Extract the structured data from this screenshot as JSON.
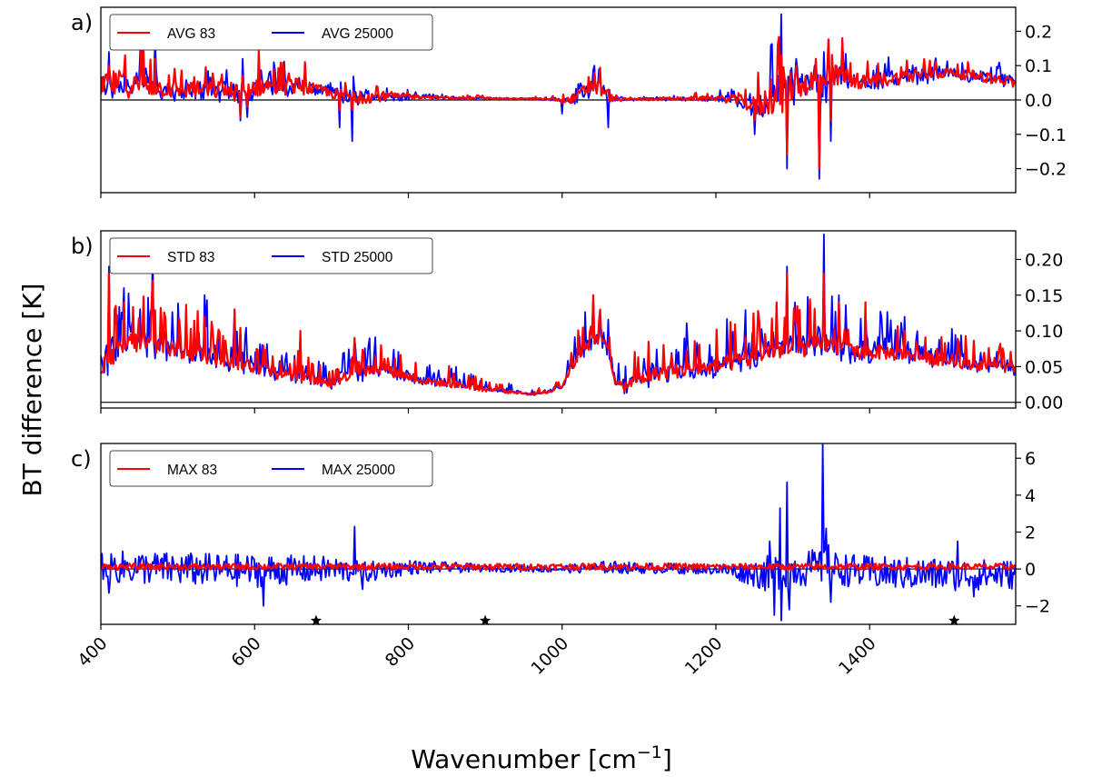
{
  "figure": {
    "ylabel": "BT difference [K]",
    "xlabel_main": "Wavenumber [cm",
    "xlabel_sup": "−1",
    "xlabel_end": "]"
  },
  "chart_data": [
    {
      "type": "line",
      "panel_label": "a)",
      "x_range": [
        400,
        1590
      ],
      "ylim": [
        -0.27,
        0.27
      ],
      "y_ticks": [
        0.2,
        0.1,
        0.0,
        -0.1,
        -0.2
      ],
      "y_tick_labels": [
        "0.2",
        "0.1",
        "0.0",
        "−0.1",
        "−0.2"
      ],
      "zero_line": true,
      "legend": "upper-left",
      "series": [
        {
          "name": "AVG 83",
          "color": "#ff0000"
        },
        {
          "name": "AVG 25000",
          "color": "#0000ff"
        }
      ],
      "profile": {
        "x": [
          400,
          420,
          440,
          460,
          480,
          500,
          540,
          560,
          580,
          590,
          600,
          640,
          660,
          680,
          700,
          720,
          730,
          740,
          760,
          780,
          820,
          860,
          900,
          940,
          960,
          980,
          1000,
          1010,
          1020,
          1030,
          1040,
          1050,
          1060,
          1070,
          1090,
          1120,
          1160,
          1200,
          1230,
          1250,
          1260,
          1270,
          1280,
          1290,
          1300,
          1320,
          1340,
          1350,
          1360,
          1380,
          1420,
          1460,
          1500,
          1540,
          1590
        ],
        "base": [
          0.03,
          0.05,
          0.04,
          0.05,
          0.03,
          0.03,
          0.03,
          0.03,
          0.02,
          0.02,
          0.04,
          0.04,
          0.04,
          0.03,
          0.02,
          0.01,
          0.01,
          0.01,
          0.01,
          0.01,
          0.01,
          0.005,
          0.005,
          0.003,
          0.003,
          0.002,
          0.0,
          0.0,
          0.01,
          0.03,
          0.04,
          0.03,
          0.01,
          0.0,
          0.002,
          0.003,
          0.004,
          0.005,
          0.0,
          -0.02,
          -0.01,
          0.0,
          0.02,
          0.03,
          0.04,
          0.05,
          0.05,
          0.06,
          0.07,
          0.05,
          0.06,
          0.07,
          0.08,
          0.07,
          0.05
        ],
        "amp": [
          0.07,
          0.08,
          0.07,
          0.08,
          0.05,
          0.05,
          0.05,
          0.06,
          0.05,
          0.04,
          0.06,
          0.05,
          0.05,
          0.03,
          0.03,
          0.04,
          0.05,
          0.04,
          0.03,
          0.02,
          0.01,
          0.007,
          0.006,
          0.004,
          0.005,
          0.006,
          0.01,
          0.02,
          0.03,
          0.04,
          0.05,
          0.05,
          0.03,
          0.01,
          0.006,
          0.008,
          0.01,
          0.015,
          0.03,
          0.06,
          0.08,
          0.09,
          0.12,
          0.14,
          0.08,
          0.07,
          0.11,
          0.09,
          0.06,
          0.04,
          0.04,
          0.04,
          0.03,
          0.03,
          0.03
        ],
        "spikes": [
          [
            411,
            0.1,
            0.14
          ],
          [
            432,
            0.13,
            0.12
          ],
          [
            453,
            0.15,
            0.24
          ],
          [
            470,
            0.12,
            0.18
          ],
          [
            584,
            0.07,
            0.12
          ],
          [
            605,
            0.15,
            0.13
          ],
          [
            625,
            0.09,
            0.11
          ],
          [
            665,
            0.11,
            0.1
          ],
          [
            582,
            -0.05,
            -0.06
          ],
          [
            590,
            -0.02,
            -0.05
          ],
          [
            727,
            -0.03,
            -0.12
          ],
          [
            711,
            -0.03,
            -0.08
          ],
          [
            1042,
            0.08,
            0.1
          ],
          [
            1048,
            0.05,
            0.09
          ],
          [
            1060,
            0.03,
            -0.08
          ],
          [
            1000,
            -0.01,
            -0.04
          ],
          [
            1251,
            -0.06,
            -0.1
          ],
          [
            1272,
            0.06,
            0.16
          ],
          [
            1285,
            0.13,
            0.25
          ],
          [
            1292,
            -0.16,
            -0.2
          ],
          [
            1305,
            0.1,
            0.12
          ],
          [
            1335,
            -0.2,
            -0.23
          ],
          [
            1340,
            0.06,
            0.14
          ],
          [
            1350,
            -0.06,
            -0.12
          ],
          [
            1364,
            0.18,
            0.17
          ],
          [
            1330,
            0.12,
            0.1
          ]
        ]
      }
    },
    {
      "type": "line",
      "panel_label": "b)",
      "x_range": [
        400,
        1590
      ],
      "ylim": [
        -0.008,
        0.24
      ],
      "y_ticks": [
        0.2,
        0.15,
        0.1,
        0.05,
        0.0
      ],
      "y_tick_labels": [
        "0.20",
        "0.15",
        "0.10",
        "0.05",
        "0.00"
      ],
      "zero_line": true,
      "legend": "upper-left",
      "series": [
        {
          "name": "STD 83",
          "color": "#ff0000"
        },
        {
          "name": "STD 25000",
          "color": "#0000ff"
        }
      ],
      "profile": {
        "x": [
          400,
          440,
          500,
          560,
          600,
          640,
          680,
          700,
          720,
          760,
          800,
          820,
          860,
          880,
          900,
          940,
          960,
          980,
          1000,
          1010,
          1030,
          1050,
          1060,
          1070,
          1080,
          1120,
          1160,
          1200,
          1250,
          1280,
          1300,
          1340,
          1380,
          1420,
          1460,
          1500,
          1540,
          1590
        ],
        "base": [
          0.04,
          0.07,
          0.06,
          0.05,
          0.04,
          0.03,
          0.025,
          0.02,
          0.03,
          0.04,
          0.03,
          0.025,
          0.02,
          0.018,
          0.015,
          0.012,
          0.01,
          0.012,
          0.02,
          0.04,
          0.07,
          0.08,
          0.07,
          0.02,
          0.015,
          0.03,
          0.035,
          0.04,
          0.05,
          0.06,
          0.06,
          0.07,
          0.06,
          0.06,
          0.055,
          0.05,
          0.045,
          0.04
        ],
        "amp": [
          0.05,
          0.06,
          0.05,
          0.05,
          0.04,
          0.035,
          0.02,
          0.02,
          0.03,
          0.03,
          0.025,
          0.02,
          0.02,
          0.015,
          0.012,
          0.008,
          0.005,
          0.006,
          0.01,
          0.02,
          0.04,
          0.03,
          0.03,
          0.02,
          0.03,
          0.04,
          0.04,
          0.04,
          0.05,
          0.06,
          0.05,
          0.05,
          0.04,
          0.04,
          0.035,
          0.03,
          0.03,
          0.025
        ],
        "spikes": [
          [
            411,
            0.18,
            0.19
          ],
          [
            468,
            0.17,
            0.205
          ],
          [
            430,
            0.14,
            0.16
          ],
          [
            535,
            0.12,
            0.15
          ],
          [
            574,
            0.13,
            0.13
          ],
          [
            660,
            0.1,
            0.095
          ],
          [
            730,
            0.09,
            0.09
          ],
          [
            1040,
            0.15,
            0.15
          ],
          [
            1050,
            0.13,
            0.12
          ],
          [
            1292,
            0.18,
            0.19
          ],
          [
            1303,
            0.12,
            0.14
          ],
          [
            1340,
            0.18,
            0.235
          ],
          [
            1360,
            0.14,
            0.15
          ],
          [
            1395,
            0.14,
            0.13
          ],
          [
            1445,
            0.1,
            0.12
          ]
        ]
      }
    },
    {
      "type": "line",
      "panel_label": "c)",
      "x_range": [
        400,
        1590
      ],
      "ylim": [
        -3.0,
        6.8
      ],
      "y_ticks": [
        6,
        4,
        2,
        0,
        -2
      ],
      "y_tick_labels": [
        "6",
        "4",
        "2",
        "0",
        "−2"
      ],
      "zero_line": true,
      "legend": "upper-left",
      "markers_x": [
        680,
        900,
        1510
      ],
      "series": [
        {
          "name": "MAX 83",
          "color": "#ff0000"
        },
        {
          "name": "MAX 25000",
          "color": "#0000ff"
        }
      ],
      "profile": {
        "x": [
          400,
          420,
          500,
          600,
          700,
          740,
          800,
          900,
          1000,
          1060,
          1100,
          1200,
          1240,
          1280,
          1300,
          1340,
          1360,
          1400,
          1500,
          1590
        ],
        "base": [
          0.2,
          0.1,
          0.0,
          -0.1,
          0.0,
          -0.2,
          0.1,
          0.05,
          0.0,
          0.1,
          0.05,
          0.0,
          -0.2,
          -0.3,
          0.0,
          0.1,
          0.0,
          -0.2,
          -0.3,
          -0.3
        ],
        "amp": [
          0.8,
          0.9,
          0.9,
          0.9,
          0.7,
          0.6,
          0.4,
          0.2,
          0.2,
          0.35,
          0.3,
          0.3,
          0.6,
          1.2,
          1.0,
          1.0,
          0.9,
          0.9,
          0.9,
          0.8
        ],
        "spikes": [
          [
            410,
            -1.3,
            -1.3
          ],
          [
            612,
            -2.0,
            -2.0
          ],
          [
            730,
            2.3,
            2.3
          ],
          [
            740,
            -1.1,
            -1.1
          ],
          [
            1270,
            1.5,
            1.5
          ],
          [
            1276,
            -2.5,
            -2.5
          ],
          [
            1283,
            3.3,
            3.3
          ],
          [
            1285,
            -2.8,
            -2.8
          ],
          [
            1292,
            4.7,
            4.7
          ],
          [
            1296,
            -2.2,
            -2.2
          ],
          [
            1339,
            6.8,
            6.8
          ],
          [
            1343,
            2.2,
            2.2
          ],
          [
            1347,
            1.3,
            1.3
          ],
          [
            1350,
            -1.8,
            -1.8
          ],
          [
            1535,
            -1.5,
            -1.5
          ],
          [
            1515,
            1.5,
            1.5
          ]
        ]
      }
    }
  ],
  "x_axis": {
    "ticks": [
      400,
      600,
      800,
      1000,
      1200,
      1400
    ],
    "tick_labels": [
      "400",
      "600",
      "800",
      "1000",
      "1200",
      "1400"
    ]
  }
}
